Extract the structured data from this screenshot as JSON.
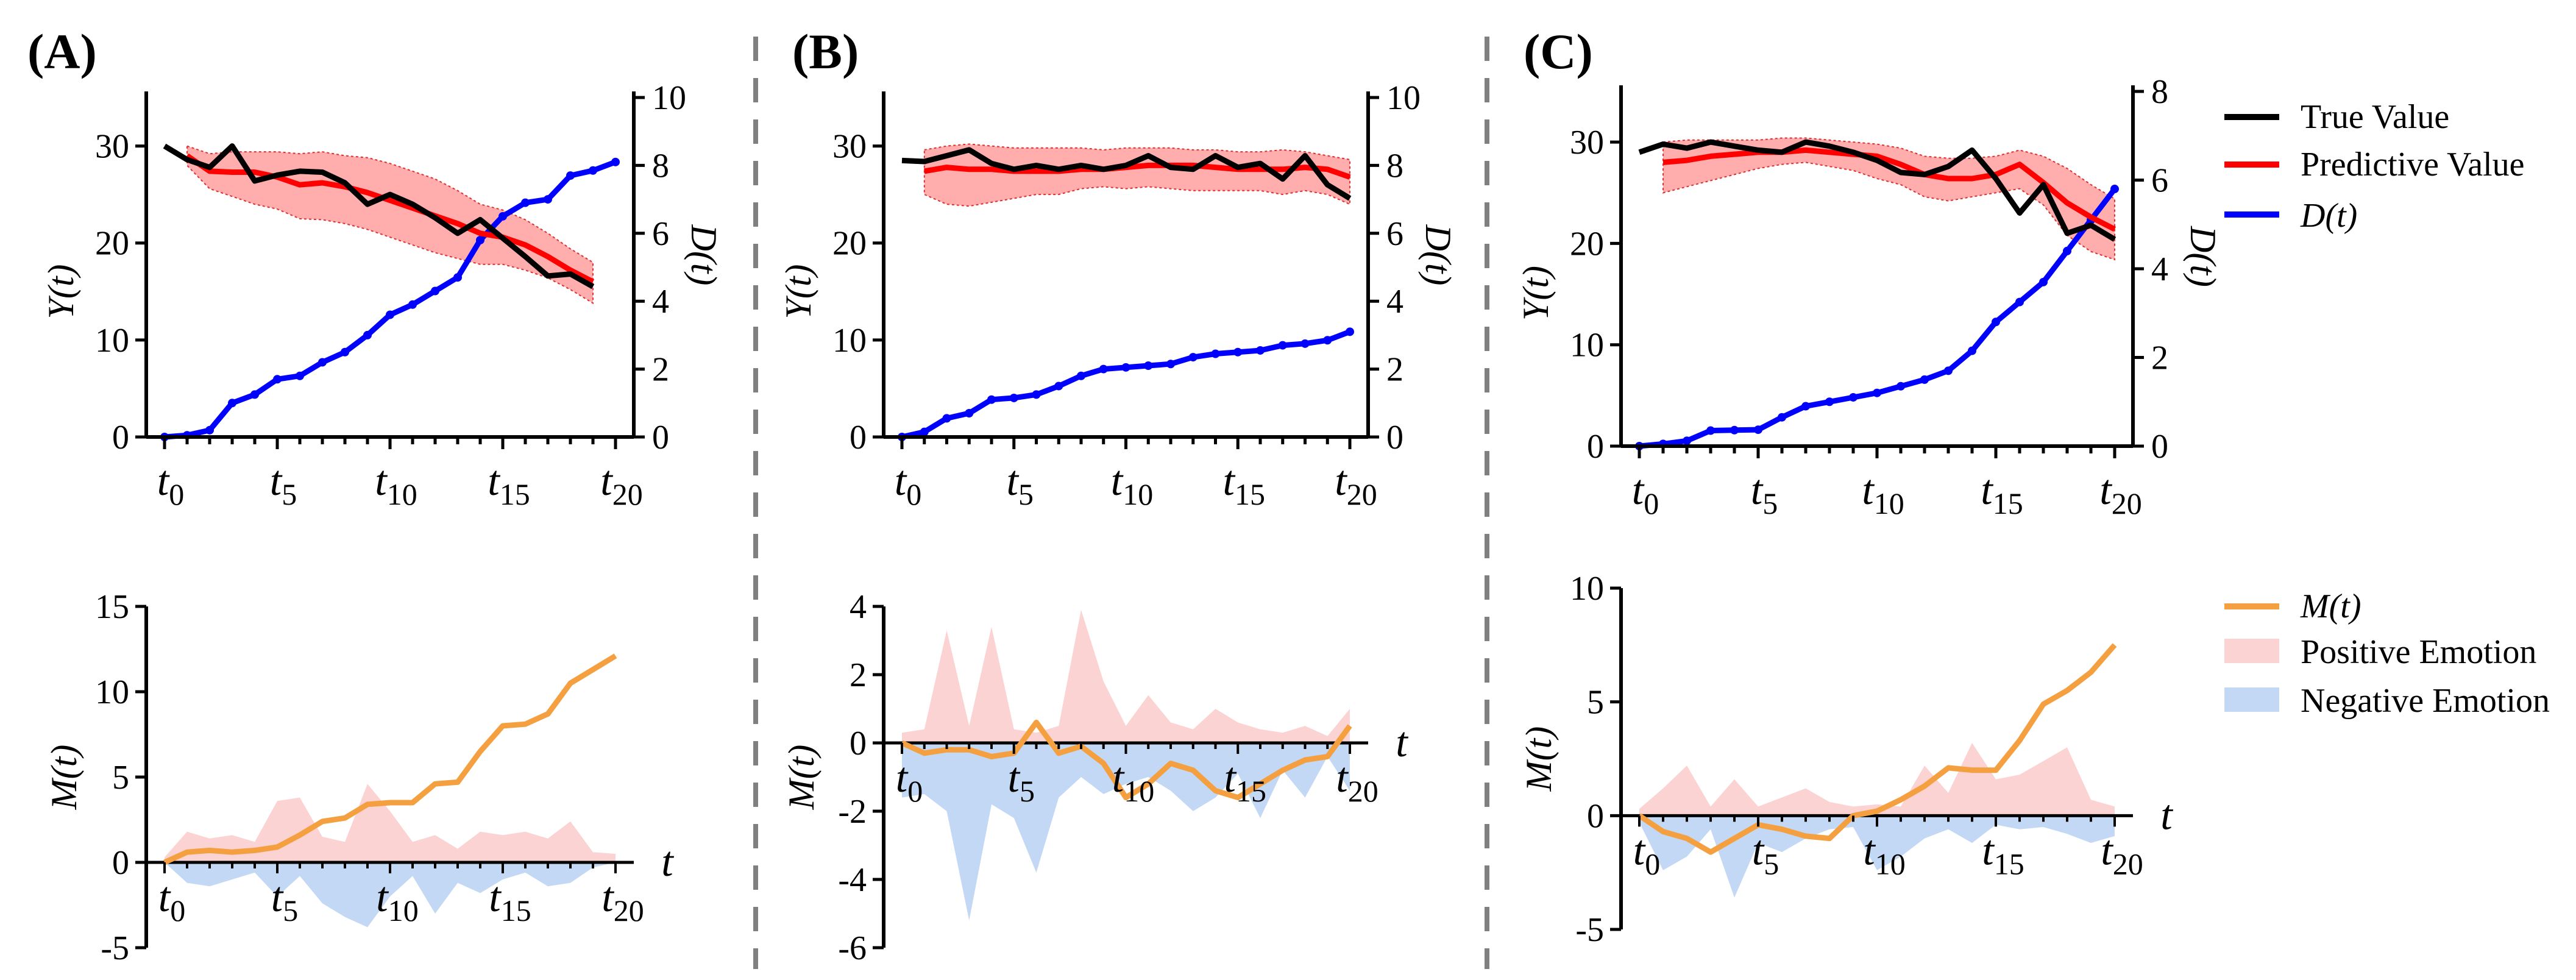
{
  "panel_labels": [
    "(A)",
    "(B)",
    "(C)"
  ],
  "legend_top": [
    {
      "label": "True Value",
      "color": "#000000"
    },
    {
      "label": "Predictive Value",
      "color": "#ff0000"
    },
    {
      "label": "D(t)",
      "color": "#0000ff"
    }
  ],
  "legend_bottom": [
    {
      "label": "M(t)",
      "color": "#f5a040"
    },
    {
      "label": "Positive Emotion",
      "color": "#fcd3d3"
    },
    {
      "label": "Negative Emotion",
      "color": "#c2d8f5"
    }
  ],
  "x_axis": {
    "label": "t",
    "tick_positions": [
      0,
      5,
      10,
      15,
      20
    ],
    "tick_labels": [
      "t0",
      "t5",
      "t10",
      "t15",
      "t20"
    ]
  },
  "chart_data": [
    {
      "id": "A-top",
      "type": "line",
      "title": "(A)",
      "ylabel": "Y(t)",
      "y2label": "D(t)",
      "x": [
        0,
        1,
        2,
        3,
        4,
        5,
        6,
        7,
        8,
        9,
        10,
        11,
        12,
        13,
        14,
        15,
        16,
        17,
        18,
        19,
        20
      ],
      "ylim": [
        0,
        35
      ],
      "yticks": [
        0,
        10,
        20,
        30
      ],
      "y2lim": [
        0,
        10
      ],
      "y2ticks": [
        0,
        2,
        4,
        6,
        8,
        10
      ],
      "series": [
        {
          "name": "True Value",
          "axis": "left",
          "color": "#000000",
          "values": [
            30.0,
            28.6,
            27.8,
            30.0,
            26.4,
            27.0,
            27.4,
            27.3,
            26.2,
            24.0,
            25.0,
            24.0,
            22.6,
            21.0,
            22.4,
            20.5,
            18.6,
            16.6,
            16.8,
            15.5,
            null
          ]
        },
        {
          "name": "Predictive Value",
          "axis": "left",
          "color": "#ff0000",
          "values": [
            null,
            29.0,
            27.4,
            27.3,
            27.3,
            26.8,
            26.0,
            26.2,
            25.8,
            25.2,
            24.4,
            23.6,
            22.8,
            22.0,
            21.0,
            20.6,
            19.8,
            18.6,
            17.2,
            16.0,
            null
          ],
          "band_lower": [
            null,
            28.0,
            25.6,
            24.8,
            24.0,
            23.5,
            22.5,
            22.4,
            22.0,
            21.4,
            20.6,
            19.8,
            19.0,
            18.4,
            17.8,
            17.8,
            17.2,
            16.4,
            15.2,
            13.8,
            null
          ],
          "band_upper": [
            null,
            30.0,
            29.2,
            29.4,
            29.4,
            29.4,
            29.2,
            29.4,
            29.0,
            28.8,
            28.2,
            27.4,
            26.6,
            25.4,
            24.0,
            23.4,
            22.4,
            21.0,
            19.4,
            18.0,
            null
          ]
        },
        {
          "name": "D(t)",
          "axis": "right",
          "color": "#0000ff",
          "values": [
            0.0,
            0.05,
            0.2,
            1.0,
            1.25,
            1.7,
            1.8,
            2.2,
            2.5,
            3.0,
            3.6,
            3.9,
            4.3,
            4.7,
            5.8,
            6.5,
            6.9,
            7.0,
            7.7,
            7.85,
            8.1
          ]
        }
      ]
    },
    {
      "id": "B-top",
      "type": "line",
      "title": "(B)",
      "ylabel": "Y(t)",
      "y2label": "D(t)",
      "x": [
        0,
        1,
        2,
        3,
        4,
        5,
        6,
        7,
        8,
        9,
        10,
        11,
        12,
        13,
        14,
        15,
        16,
        17,
        18,
        19,
        20
      ],
      "ylim": [
        0,
        35
      ],
      "yticks": [
        0,
        10,
        20,
        30
      ],
      "y2lim": [
        0,
        10
      ],
      "y2ticks": [
        0,
        2,
        4,
        6,
        8,
        10
      ],
      "series": [
        {
          "name": "True Value",
          "axis": "left",
          "color": "#000000",
          "values": [
            28.5,
            28.4,
            29.0,
            29.6,
            28.2,
            27.6,
            28.0,
            27.6,
            28.0,
            27.6,
            28.0,
            29.0,
            27.8,
            27.6,
            29.0,
            27.8,
            28.2,
            26.6,
            29.0,
            26.0,
            24.6
          ]
        },
        {
          "name": "Predictive Value",
          "axis": "left",
          "color": "#ff0000",
          "values": [
            null,
            27.4,
            27.8,
            27.6,
            27.6,
            27.4,
            27.4,
            27.4,
            27.6,
            27.6,
            27.8,
            28.0,
            28.0,
            28.0,
            27.8,
            27.6,
            27.6,
            27.6,
            27.8,
            27.6,
            26.8
          ],
          "band_lower": [
            null,
            25.0,
            24.0,
            23.8,
            24.2,
            24.6,
            25.0,
            25.0,
            25.6,
            25.8,
            25.6,
            25.8,
            25.6,
            25.4,
            25.4,
            25.4,
            25.4,
            25.0,
            25.4,
            25.0,
            24.0
          ],
          "band_upper": [
            null,
            29.6,
            30.0,
            30.2,
            30.0,
            29.8,
            29.8,
            29.8,
            29.8,
            29.6,
            29.8,
            29.8,
            29.8,
            29.6,
            29.6,
            29.4,
            29.4,
            29.6,
            29.4,
            29.0,
            28.6
          ]
        },
        {
          "name": "D(t)",
          "axis": "right",
          "color": "#0000ff",
          "values": [
            0.0,
            0.15,
            0.55,
            0.7,
            1.1,
            1.15,
            1.25,
            1.5,
            1.8,
            2.0,
            2.05,
            2.1,
            2.15,
            2.35,
            2.45,
            2.5,
            2.55,
            2.7,
            2.75,
            2.85,
            3.1
          ]
        }
      ]
    },
    {
      "id": "C-top",
      "type": "line",
      "title": "(C)",
      "ylabel": "Y(t)",
      "y2label": "D(t)",
      "x": [
        0,
        1,
        2,
        3,
        4,
        5,
        6,
        7,
        8,
        9,
        10,
        11,
        12,
        13,
        14,
        15,
        16,
        17,
        18,
        19,
        20
      ],
      "ylim": [
        0,
        35
      ],
      "yticks": [
        0,
        10,
        20,
        30
      ],
      "y2lim": [
        0,
        8
      ],
      "y2ticks": [
        0,
        2,
        4,
        6,
        8
      ],
      "series": [
        {
          "name": "True Value",
          "axis": "left",
          "color": "#000000",
          "values": [
            29.0,
            29.8,
            29.4,
            30.0,
            29.6,
            29.2,
            29.0,
            30.0,
            29.6,
            29.0,
            28.2,
            27.0,
            26.8,
            27.6,
            29.2,
            26.4,
            23.0,
            25.8,
            21.0,
            21.8,
            20.4
          ]
        },
        {
          "name": "Predictive Value",
          "axis": "left",
          "color": "#ff0000",
          "values": [
            null,
            28.0,
            28.2,
            28.6,
            28.8,
            29.0,
            29.0,
            29.2,
            29.0,
            28.8,
            28.6,
            27.8,
            26.8,
            26.4,
            26.4,
            26.8,
            27.8,
            26.0,
            24.0,
            22.6,
            21.4
          ],
          "band_lower": [
            null,
            25.0,
            25.6,
            26.2,
            26.8,
            27.4,
            27.8,
            28.0,
            27.6,
            27.2,
            26.4,
            25.8,
            24.6,
            24.2,
            24.6,
            25.0,
            25.4,
            23.8,
            20.8,
            19.2,
            18.4
          ],
          "band_upper": [
            null,
            30.0,
            30.2,
            30.2,
            30.2,
            30.2,
            30.4,
            30.4,
            30.2,
            30.0,
            29.8,
            29.4,
            28.6,
            28.4,
            28.4,
            28.6,
            29.2,
            28.6,
            27.4,
            25.8,
            24.4
          ]
        },
        {
          "name": "D(t)",
          "axis": "right",
          "color": "#0000ff",
          "values": [
            0.0,
            0.05,
            0.12,
            0.35,
            0.36,
            0.37,
            0.65,
            0.9,
            1.0,
            1.1,
            1.2,
            1.35,
            1.5,
            1.7,
            2.15,
            2.8,
            3.25,
            3.7,
            4.4,
            5.1,
            5.8
          ]
        }
      ]
    },
    {
      "id": "A-bottom",
      "type": "area",
      "ylabel": "M(t)",
      "x": [
        0,
        1,
        2,
        3,
        4,
        5,
        6,
        7,
        8,
        9,
        10,
        11,
        12,
        13,
        14,
        15,
        16,
        17,
        18,
        19,
        20
      ],
      "ylim": [
        -5,
        15
      ],
      "yticks": [
        -5,
        0,
        5,
        10,
        15
      ],
      "series": [
        {
          "name": "M(t)",
          "color": "#f5a040",
          "values": [
            0.0,
            0.6,
            0.7,
            0.6,
            0.7,
            0.9,
            1.6,
            2.4,
            2.6,
            3.4,
            3.5,
            3.5,
            4.6,
            4.7,
            6.5,
            8.0,
            8.1,
            8.7,
            10.5,
            11.3,
            12.1
          ]
        },
        {
          "name": "Positive Emotion",
          "color": "#fcd3d3",
          "values": [
            0.3,
            1.8,
            1.4,
            1.6,
            1.2,
            3.6,
            3.8,
            1.5,
            1.2,
            4.6,
            3.0,
            1.2,
            1.6,
            0.8,
            1.8,
            1.6,
            1.8,
            1.4,
            2.4,
            0.6,
            0.5
          ]
        },
        {
          "name": "Negative Emotion",
          "color": "#c2d8f5",
          "values": [
            0.0,
            -1.2,
            -1.4,
            -1.0,
            -0.6,
            -2.0,
            -0.8,
            -2.4,
            -3.2,
            -3.8,
            -2.0,
            -0.8,
            -3.0,
            -1.2,
            -1.8,
            -1.0,
            -0.6,
            -1.4,
            -1.2,
            -0.3,
            0.0
          ]
        }
      ]
    },
    {
      "id": "B-bottom",
      "type": "area",
      "ylabel": "M(t)",
      "x": [
        0,
        1,
        2,
        3,
        4,
        5,
        6,
        7,
        8,
        9,
        10,
        11,
        12,
        13,
        14,
        15,
        16,
        17,
        18,
        19,
        20
      ],
      "ylim": [
        -6,
        4
      ],
      "yticks": [
        -6,
        -4,
        -2,
        0,
        2,
        4
      ],
      "series": [
        {
          "name": "M(t)",
          "color": "#f5a040",
          "values": [
            0.0,
            -0.3,
            -0.2,
            -0.2,
            -0.4,
            -0.3,
            0.6,
            -0.3,
            -0.1,
            -0.6,
            -1.6,
            -1.2,
            -0.6,
            -0.8,
            -1.4,
            -1.6,
            -1.2,
            -0.8,
            -0.5,
            -0.4,
            0.5
          ]
        },
        {
          "name": "Positive Emotion",
          "color": "#fcd3d3",
          "values": [
            0.3,
            0.4,
            3.3,
            0.5,
            3.4,
            0.4,
            0.3,
            0.5,
            3.9,
            1.8,
            0.5,
            1.4,
            0.6,
            0.4,
            1.0,
            0.6,
            0.4,
            0.3,
            0.5,
            0.2,
            1.0
          ]
        },
        {
          "name": "Negative Emotion",
          "color": "#c2d8f5",
          "values": [
            -1.6,
            -1.5,
            -2.0,
            -5.2,
            -1.8,
            -2.2,
            -3.8,
            -1.6,
            -1.0,
            -1.5,
            -1.2,
            -1.0,
            -1.4,
            -2.0,
            -1.6,
            -0.9,
            -2.2,
            -0.8,
            -1.6,
            -0.4,
            -1.4
          ]
        }
      ]
    },
    {
      "id": "C-bottom",
      "type": "area",
      "ylabel": "M(t)",
      "x": [
        0,
        1,
        2,
        3,
        4,
        5,
        6,
        7,
        8,
        9,
        10,
        11,
        12,
        13,
        14,
        15,
        16,
        17,
        18,
        19,
        20
      ],
      "ylim": [
        -5,
        10
      ],
      "yticks": [
        -5,
        0,
        5,
        10
      ],
      "series": [
        {
          "name": "M(t)",
          "color": "#f5a040",
          "values": [
            0.0,
            -0.7,
            -1.0,
            -1.6,
            -1.0,
            -0.4,
            -0.6,
            -0.9,
            -1.0,
            0.0,
            0.2,
            0.7,
            1.3,
            2.1,
            2.0,
            2.0,
            3.3,
            4.9,
            5.5,
            6.3,
            7.5
          ]
        },
        {
          "name": "Positive Emotion",
          "color": "#fcd3d3",
          "values": [
            0.3,
            1.2,
            2.2,
            0.4,
            1.6,
            0.4,
            0.8,
            1.2,
            0.6,
            0.4,
            0.5,
            0.4,
            2.2,
            1.0,
            3.2,
            1.6,
            1.8,
            2.4,
            3.0,
            0.7,
            0.4
          ]
        },
        {
          "name": "Negative Emotion",
          "color": "#c2d8f5",
          "values": [
            -0.3,
            -2.4,
            -1.8,
            -0.6,
            -3.6,
            -1.2,
            -1.6,
            -1.0,
            -0.6,
            -0.5,
            -2.4,
            -1.8,
            -1.0,
            -0.6,
            -1.2,
            -0.4,
            -0.6,
            -0.5,
            -0.8,
            -1.2,
            -0.9
          ]
        }
      ]
    }
  ]
}
